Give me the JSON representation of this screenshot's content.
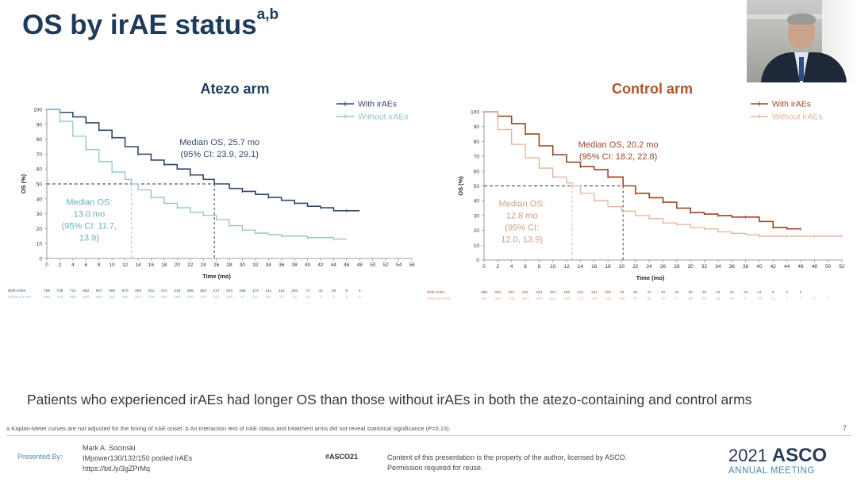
{
  "title": {
    "text": "OS by irAE status",
    "superscript": "a,b"
  },
  "chart_data": [
    {
      "type": "line",
      "title": "Atezo arm",
      "title_color": "#1f3b5a",
      "xlabel": "Time (mo)",
      "ylabel": "OS (%)",
      "xlim": [
        0,
        56
      ],
      "ylim": [
        0,
        100
      ],
      "x_ticks": [
        0,
        2,
        4,
        6,
        8,
        10,
        12,
        14,
        16,
        18,
        20,
        22,
        24,
        26,
        28,
        30,
        32,
        34,
        36,
        38,
        40,
        42,
        44,
        46,
        48,
        50,
        52,
        54,
        56
      ],
      "y_ticks": [
        0,
        10,
        20,
        30,
        40,
        50,
        60,
        70,
        80,
        90,
        100
      ],
      "legend_position": "top-right",
      "series": [
        {
          "name": "With irAEs",
          "color": "#34486e",
          "x": [
            0,
            2,
            4,
            6,
            8,
            10,
            12,
            14,
            16,
            18,
            20,
            22,
            24,
            25.7,
            28,
            30,
            32,
            34,
            36,
            38,
            40,
            42,
            44,
            46,
            48
          ],
          "y": [
            100,
            98,
            95,
            91,
            86,
            81,
            75,
            70,
            66,
            63,
            60,
            56,
            53,
            50,
            47,
            45,
            43,
            41,
            39,
            37,
            35,
            34,
            32,
            32,
            32
          ]
        },
        {
          "name": "Without irAEs",
          "color": "#8fc4ca",
          "x": [
            0,
            2,
            4,
            6,
            8,
            10,
            12,
            13,
            14,
            16,
            18,
            20,
            22,
            24,
            26,
            28,
            30,
            32,
            34,
            36,
            38,
            40,
            42,
            44,
            46
          ],
          "y": [
            100,
            92,
            82,
            73,
            65,
            58,
            53,
            50,
            46,
            41,
            37,
            34,
            31,
            29,
            26,
            22,
            19,
            17,
            16,
            15,
            15,
            14,
            14,
            13,
            13
          ]
        }
      ],
      "annotations": [
        {
          "text": [
            "Median OS, 25.7 mo",
            "(95% CI: 23.9, 29.1)"
          ],
          "color": "#34486e",
          "x": 26.5,
          "y": 76
        },
        {
          "text": [
            "Median OS:",
            "13.0 mo",
            "(95% CI: 11.7,",
            "13.9)"
          ],
          "color": "#6bb0bb",
          "x": 6.5,
          "y": 36
        }
      ],
      "medians": [
        {
          "x": 25.7,
          "style": "dark"
        },
        {
          "x": 13.0,
          "style": "light"
        }
      ],
      "risk_table": {
        "rows": [
          {
            "label": "With irAEs",
            "color": "#34486e",
            "values": [
              "759",
              "736",
              "714",
              "682",
              "637",
              "605",
              "570",
              "483",
              "431",
              "372",
              "318",
              "285",
              "253",
              "217",
              "202",
              "186",
              "174",
              "141",
              "115",
              "100",
              "74",
              "44",
              "29",
              "9",
              "4"
            ]
          },
          {
            "label": "Without irAEs",
            "color": "#8fc4ca",
            "values": [
              "866",
              "735",
              "666",
              "580",
              "535",
              "500",
              "464",
              "414",
              "346",
              "305",
              "266",
              "205",
              "171",
              "123",
              "100",
              "71",
              "54",
              "36",
              "26",
              "18",
              "11",
              "2",
              "0",
              "0",
              "0"
            ]
          }
        ]
      }
    },
    {
      "type": "line",
      "title": "Control arm",
      "title_color": "#b0532c",
      "xlabel": "Time (mo)",
      "ylabel": "OS (%)",
      "xlim": [
        0,
        52
      ],
      "ylim": [
        0,
        100
      ],
      "x_ticks": [
        0,
        2,
        4,
        6,
        8,
        10,
        12,
        14,
        16,
        18,
        20,
        22,
        24,
        26,
        28,
        30,
        32,
        34,
        36,
        38,
        40,
        42,
        44,
        46,
        48,
        50,
        52
      ],
      "y_ticks": [
        0,
        10,
        20,
        30,
        40,
        50,
        60,
        70,
        80,
        90,
        100
      ],
      "legend_position": "top-right",
      "series": [
        {
          "name": "With irAEs",
          "color": "#9c4526",
          "x": [
            0,
            2,
            4,
            6,
            8,
            10,
            12,
            14,
            16,
            18,
            20.2,
            22,
            24,
            26,
            28,
            30,
            32,
            34,
            36,
            38,
            40,
            42,
            44,
            46
          ],
          "y": [
            100,
            97,
            92,
            85,
            77,
            71,
            66,
            63,
            61,
            56,
            50,
            45,
            42,
            39,
            35,
            32,
            31,
            30,
            29,
            29,
            26,
            22,
            21,
            21
          ]
        },
        {
          "name": "Without irAEs",
          "color": "#e0b49e",
          "x": [
            0,
            2,
            4,
            6,
            8,
            10,
            12,
            12.8,
            14,
            16,
            18,
            20,
            22,
            24,
            26,
            28,
            30,
            32,
            34,
            36,
            38,
            40,
            42,
            44,
            46,
            48,
            50,
            52
          ],
          "y": [
            100,
            88,
            78,
            69,
            62,
            56,
            52,
            50,
            45,
            40,
            36,
            33,
            30,
            28,
            25,
            24,
            22,
            21,
            19,
            18,
            17,
            16,
            16,
            16,
            16,
            16,
            16,
            16
          ]
        }
      ],
      "annotations": [
        {
          "text": [
            "Median OS, 20.2 mo",
            "(95% CI: 18.2, 22.8)"
          ],
          "color": "#9c4526",
          "x": 19.5,
          "y": 76
        },
        {
          "text": [
            "Median OS:",
            "12.8 mo",
            "(95% CI:",
            "12.0, 13.9)"
          ],
          "color": "#c9a08a",
          "x": 5.5,
          "y": 36
        }
      ],
      "medians": [
        {
          "x": 20.2,
          "style": "dark"
        },
        {
          "x": 12.8,
          "style": "light"
        }
      ],
      "risk_table": {
        "rows": [
          {
            "label": "With irAEs",
            "color": "#9c4526",
            "values": [
              "289",
              "284",
              "267",
              "251",
              "234",
              "207",
              "188",
              "161",
              "131",
              "102",
              "75",
              "60",
              "47",
              "40",
              "32",
              "30",
              "28",
              "24",
              "22",
              "19",
              "14",
              "8",
              "3",
              "2"
            ]
          },
          {
            "label": "Without irAEs",
            "color": "#e0b49e",
            "values": [
              "451",
              "382",
              "449",
              "384",
              "348",
              "318",
              "258",
              "173",
              "148",
              "130",
              "108",
              "87",
              "80",
              "79",
              "71",
              "68",
              "56",
              "46",
              "29",
              "17",
              "19",
              "13",
              "7",
              "1",
              "1",
              "1"
            ]
          }
        ]
      }
    }
  ],
  "conclusion": "Patients who experienced irAEs had longer OS than those without irAEs in both the atezo-containing and control arms",
  "fine_print": "a Kaplan-Meier curves are not adjusted for the timing of irAE onset. b An interaction test of irAE status and treatment arms did not reveal statistical significance (P=0.13).",
  "page_number": "7",
  "footer": {
    "presented_by": "Presented By:",
    "presenter_lines": [
      "Mark A. Socinski",
      "IMpower130/132/150 pooled irAEs",
      "https://bit.ly/3gZPrMq"
    ],
    "hashtag": "#ASCO21",
    "copyright_lines": [
      "Content of this presentation is the property of the author, licensed by ASCO.",
      "Permission required for reuse."
    ],
    "brand_year": "2021",
    "brand_name": "ASCO",
    "brand_sub": "ANNUAL MEETING"
  }
}
